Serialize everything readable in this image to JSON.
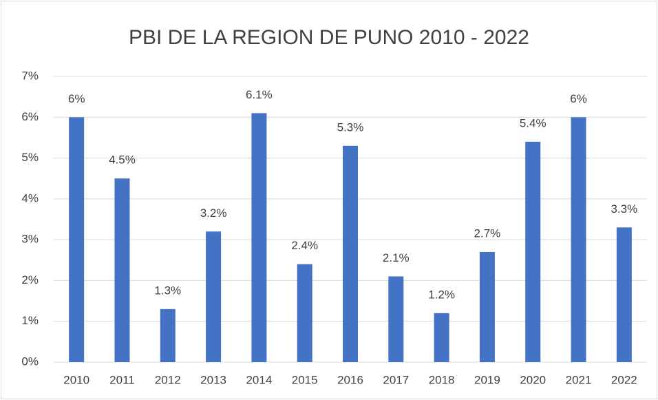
{
  "chart_data": {
    "type": "bar",
    "title": "PBI DE LA REGION DE PUNO 2010 - 2022",
    "categories": [
      "2010",
      "2011",
      "2012",
      "2013",
      "2014",
      "2015",
      "2016",
      "2017",
      "2018",
      "2019",
      "2020",
      "2021",
      "2022"
    ],
    "values": [
      6,
      4.5,
      1.3,
      3.2,
      6.1,
      2.4,
      5.3,
      2.1,
      1.2,
      2.7,
      5.4,
      6,
      3.3
    ],
    "value_labels": [
      "6%",
      "4.5%",
      "1.3%",
      "3.2%",
      "6.1%",
      "2.4%",
      "5.3%",
      "2.1%",
      "1.2%",
      "2.7%",
      "5.4%",
      "6%",
      "3.3%"
    ],
    "color": "#4472c4",
    "ylim": [
      0,
      7
    ],
    "yticks": [
      {
        "value": 0,
        "label": "0%"
      },
      {
        "value": 1,
        "label": "1%"
      },
      {
        "value": 2,
        "label": "2%"
      },
      {
        "value": 3,
        "label": "3%"
      },
      {
        "value": 4,
        "label": "4%"
      },
      {
        "value": 5,
        "label": "5%"
      },
      {
        "value": 6,
        "label": "6%"
      },
      {
        "value": 7,
        "label": "7%"
      }
    ],
    "grid": true
  }
}
